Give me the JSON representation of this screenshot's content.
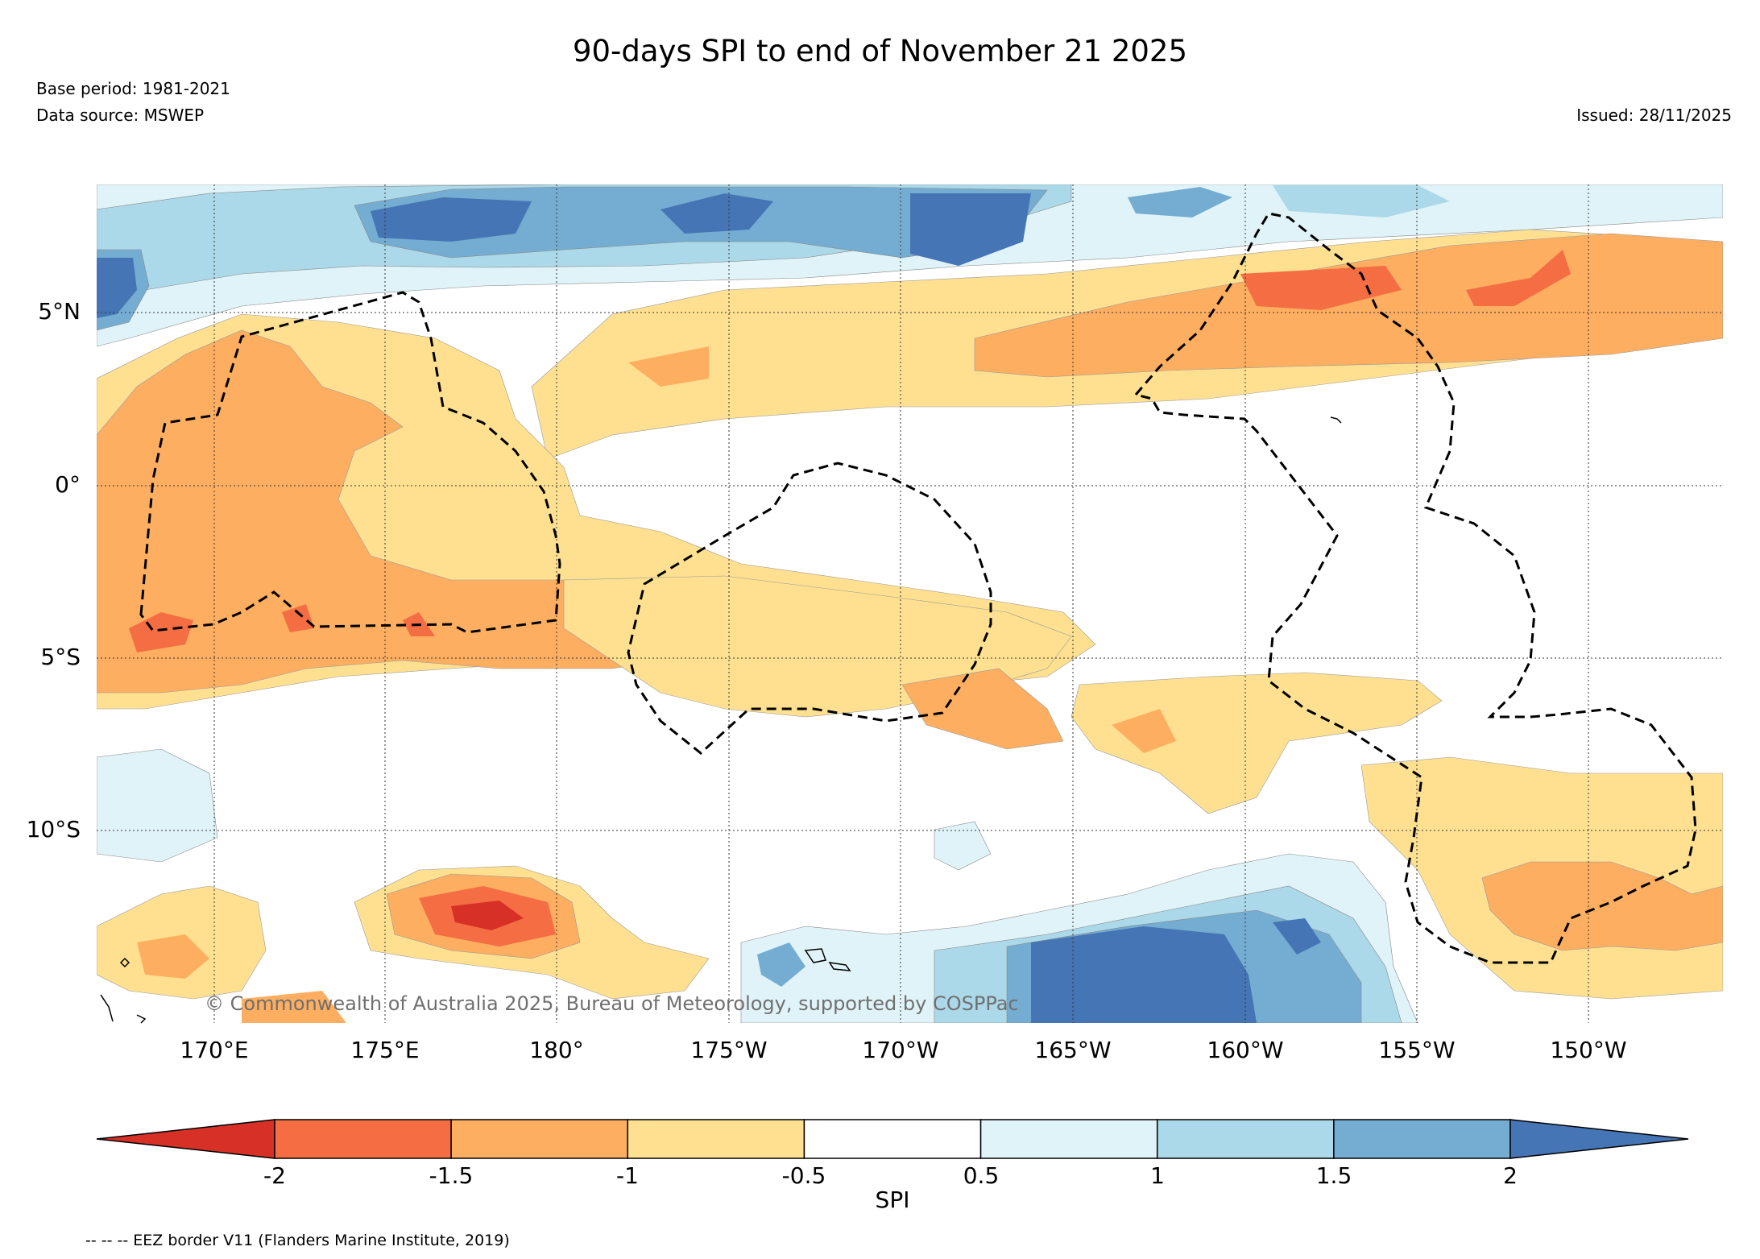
{
  "title": "90-days SPI to end of November 21 2025",
  "base_period": "Base period: 1981-2021",
  "data_source": "Data source: MSWEP",
  "issued": "Issued: 28/11/2025",
  "copyright": "© Commonwealth of Australia 2025, Bureau of Meteorology, supported by COSPPac",
  "footnote": "-- -- -- EEZ border V11 (Flanders Marine Institute, 2019)",
  "map": {
    "lat_labels": [
      "5°N",
      "0°",
      "5°S",
      "10°S"
    ],
    "lon_labels": [
      "170°E",
      "175°E",
      "180°",
      "175°W",
      "170°W",
      "165°W",
      "160°W",
      "155°W",
      "150°W"
    ]
  },
  "colorbar": {
    "title": "SPI",
    "tick_labels": [
      "-2",
      "-1.5",
      "-1",
      "-0.5",
      "0.5",
      "1",
      "1.5",
      "2"
    ],
    "colors": {
      "below_-2": "#d73027",
      "-2_to_-1.5": "#f46d43",
      "-1.5_to_-1": "#fdae61",
      "-1_to_-0.5": "#fee090",
      "-0.5_to_0.5": "#ffffff",
      "0.5_to_1": "#e0f3f8",
      "1_to_1.5": "#abd9e9",
      "1.5_to_2": "#74add1",
      "above_2": "#4575b4"
    }
  }
}
